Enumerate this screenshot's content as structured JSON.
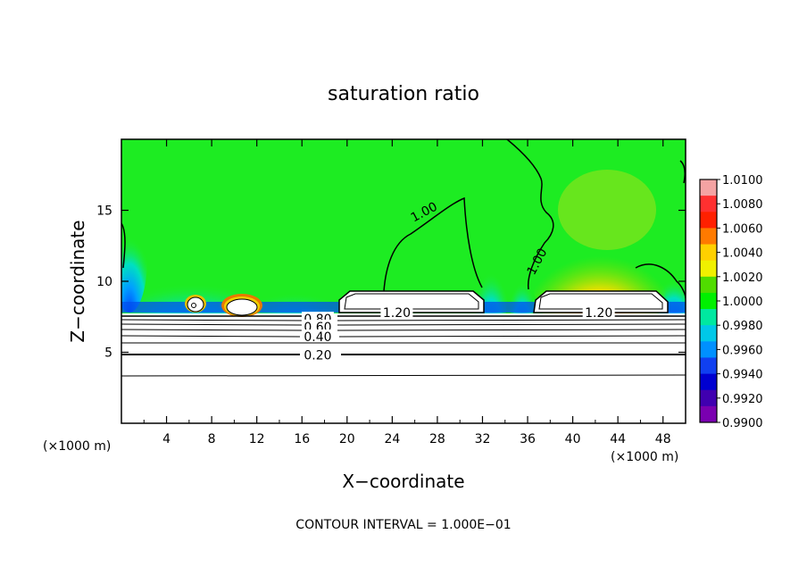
{
  "chart_data": {
    "type": "heatmap",
    "title": "saturation ratio",
    "xlabel": "X−coordinate",
    "ylabel": "Z−coordinate",
    "x_unit_left": "(×1000 m)",
    "x_unit_right": "(×1000 m)",
    "xlim": [
      0,
      50
    ],
    "ylim": [
      0,
      20
    ],
    "xticks": [
      4,
      8,
      12,
      16,
      20,
      24,
      28,
      32,
      36,
      40,
      44,
      48
    ],
    "yticks": [
      5,
      10,
      15
    ],
    "colorbar": {
      "levels": [
        "1.0100",
        "1.0080",
        "1.0060",
        "1.0040",
        "1.0020",
        "1.0000",
        "0.9980",
        "0.9960",
        "0.9940",
        "0.9920",
        "0.9900"
      ],
      "colors": [
        "#f4a3a3",
        "#ff3030",
        "#ff2000",
        "#ff7a00",
        "#ffd000",
        "#f0f000",
        "#50dc00",
        "#00f000",
        "#00e8a0",
        "#00c8e8",
        "#0090ff",
        "#1040f0",
        "#0000d0",
        "#4000b0",
        "#7a00b0"
      ]
    },
    "contour_labels": [
      {
        "text": "1.00",
        "x": 26.8,
        "y": 14.9,
        "rotate": -28
      },
      {
        "text": "1.00",
        "x": 36.8,
        "y": 11.4,
        "rotate": -62
      },
      {
        "text": "1.20",
        "x": 24.4,
        "y": 7.8,
        "rotate": 0
      },
      {
        "text": "1.20",
        "x": 42.3,
        "y": 7.8,
        "rotate": 0
      },
      {
        "text": "0.80",
        "x": 17.4,
        "y": 7.35,
        "rotate": 0
      },
      {
        "text": "0.60",
        "x": 17.4,
        "y": 6.8,
        "rotate": 0
      },
      {
        "text": "0.40",
        "x": 17.4,
        "y": 6.1,
        "rotate": 0
      },
      {
        "text": "0.20",
        "x": 17.4,
        "y": 4.8,
        "rotate": 0
      }
    ],
    "footer": "CONTOUR INTERVAL = 1.000E−01"
  }
}
